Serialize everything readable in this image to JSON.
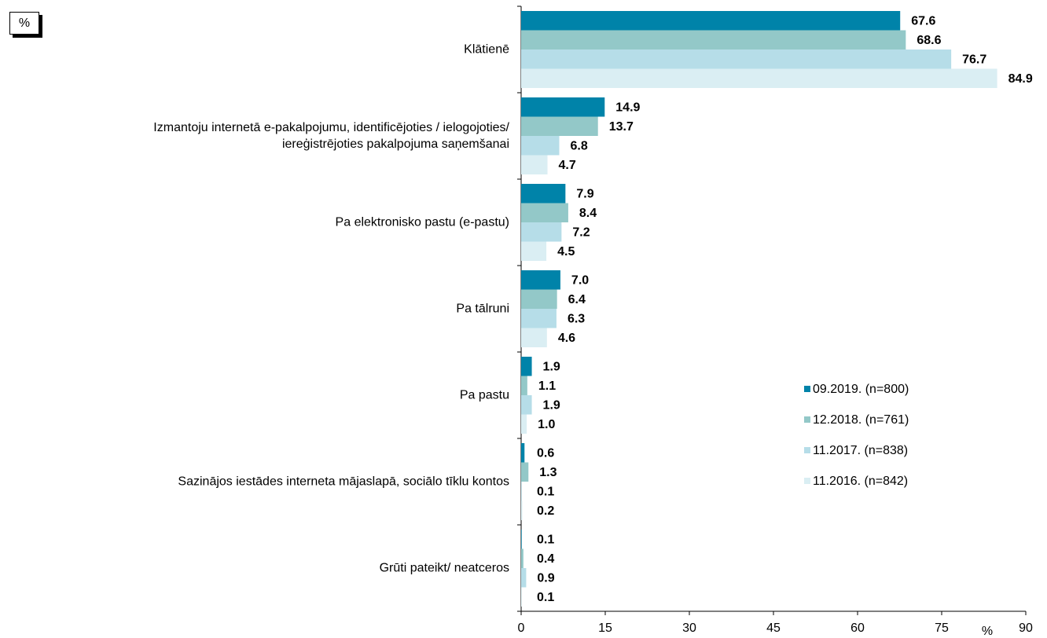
{
  "chart_data": {
    "type": "hbar",
    "corner_label": "%",
    "xlabel": "%",
    "categories": [
      "Klātienē",
      "Izmantoju internetā e-pakalpojumu, identificējoties / ielogojoties/\niereģistrējoties pakalpojuma saņemšanai",
      "Pa elektronisko pastu (e-pastu)",
      "Pa tālruni",
      "Pa pastu",
      "Sazinājos iestādes interneta mājaslapā, sociālo tīklu kontos",
      "Grūti pateikt/ neatceros"
    ],
    "series": [
      {
        "name": "09.2019. (n=800)",
        "color": "#0083a9",
        "values": [
          67.6,
          14.9,
          7.9,
          7,
          1.9,
          0.6,
          0.1
        ],
        "value_labels": [
          "67.6",
          "14.9",
          "7.9",
          "7.0",
          "1.9",
          "0.6",
          "0.1"
        ]
      },
      {
        "name": "12.2018. (n=761)",
        "color": "#93c8c8",
        "values": [
          68.6,
          13.7,
          8.4,
          6.4,
          1.1,
          1.3,
          0.4
        ],
        "value_labels": [
          "68.6",
          "13.7",
          "8.4",
          "6.4",
          "1.1",
          "1.3",
          "0.4"
        ]
      },
      {
        "name": "11.2017. (n=838)",
        "color": "#b6dde8",
        "values": [
          76.7,
          6.8,
          7.2,
          6.3,
          1.9,
          0.1,
          0.9
        ],
        "value_labels": [
          "76.7",
          "6.8",
          "7.2",
          "6.3",
          "1.9",
          "0.1",
          "0.9"
        ]
      },
      {
        "name": "11.2016. (n=842)",
        "color": "#daeef3",
        "values": [
          84.9,
          4.7,
          4.5,
          4.6,
          1,
          0.2,
          0.1
        ],
        "value_labels": [
          "84.9",
          "4.7",
          "4.5",
          "4.6",
          "1.0",
          "0.2",
          "0.1"
        ]
      }
    ],
    "xlim": [
      0,
      90
    ],
    "xticks": [
      0,
      15,
      30,
      45,
      60,
      75,
      90
    ],
    "legend": "right"
  }
}
